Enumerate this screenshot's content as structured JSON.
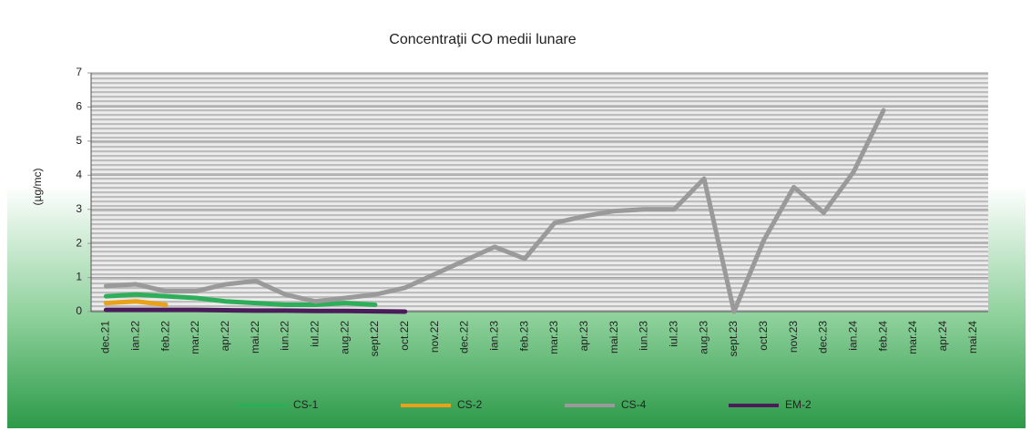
{
  "chart_data": {
    "type": "line",
    "title": "Concentraţii CO medii lunare",
    "y_label": "(µg/mc)",
    "categories": [
      "dec.21",
      "ian.22",
      "feb.22",
      "mar.22",
      "apr.22",
      "mai.22",
      "iun.22",
      "iul.22",
      "aug.22",
      "sept.22",
      "oct.22",
      "nov.22",
      "dec.22",
      "ian.23",
      "feb.23",
      "mar.23",
      "apr.23",
      "mai.23",
      "iun.23",
      "iul.23",
      "aug.23",
      "sept.23",
      "oct.23",
      "nov.23",
      "dec.23",
      "ian.24",
      "feb.24",
      "mar.24",
      "apr.24",
      "mai.24"
    ],
    "series": [
      {
        "name": "CS-1",
        "color": "#2fae5a",
        "values": [
          0.45,
          0.5,
          0.45,
          0.4,
          0.3,
          0.25,
          0.2,
          0.2,
          0.25,
          0.2,
          null,
          null,
          null,
          null,
          null,
          null,
          null,
          null,
          null,
          null,
          null,
          null,
          null,
          null,
          null,
          null,
          null,
          null,
          null,
          null
        ]
      },
      {
        "name": "CS-2",
        "color": "#e8a21c",
        "values": [
          0.25,
          0.3,
          0.2,
          null,
          null,
          null,
          null,
          null,
          null,
          null,
          null,
          null,
          null,
          null,
          null,
          null,
          null,
          null,
          null,
          null,
          null,
          null,
          null,
          null,
          null,
          null,
          null,
          null,
          null,
          null
        ]
      },
      {
        "name": "CS-4",
        "color": "#9a9a9a",
        "values": [
          0.75,
          0.8,
          0.6,
          0.6,
          0.8,
          0.9,
          0.5,
          0.3,
          0.4,
          0.5,
          0.7,
          1.1,
          1.5,
          1.9,
          1.55,
          2.6,
          2.8,
          2.95,
          3.0,
          3.0,
          3.9,
          0,
          2.1,
          3.65,
          2.9,
          4.1,
          5.9,
          null,
          null,
          null
        ]
      },
      {
        "name": "EM-2",
        "color": "#4a1d5a",
        "values": [
          0.05,
          0.05,
          0.05,
          0.05,
          0.04,
          0.03,
          0.03,
          0.02,
          0.02,
          0.01,
          0.0,
          null,
          null,
          null,
          null,
          null,
          null,
          null,
          null,
          null,
          null,
          null,
          null,
          null,
          null,
          null,
          null,
          null,
          null,
          null
        ]
      }
    ],
    "ylim": [
      0,
      7
    ],
    "yticks": [
      0,
      1,
      2,
      3,
      4,
      5,
      6,
      7
    ],
    "grid": true,
    "legend": "bottom"
  }
}
